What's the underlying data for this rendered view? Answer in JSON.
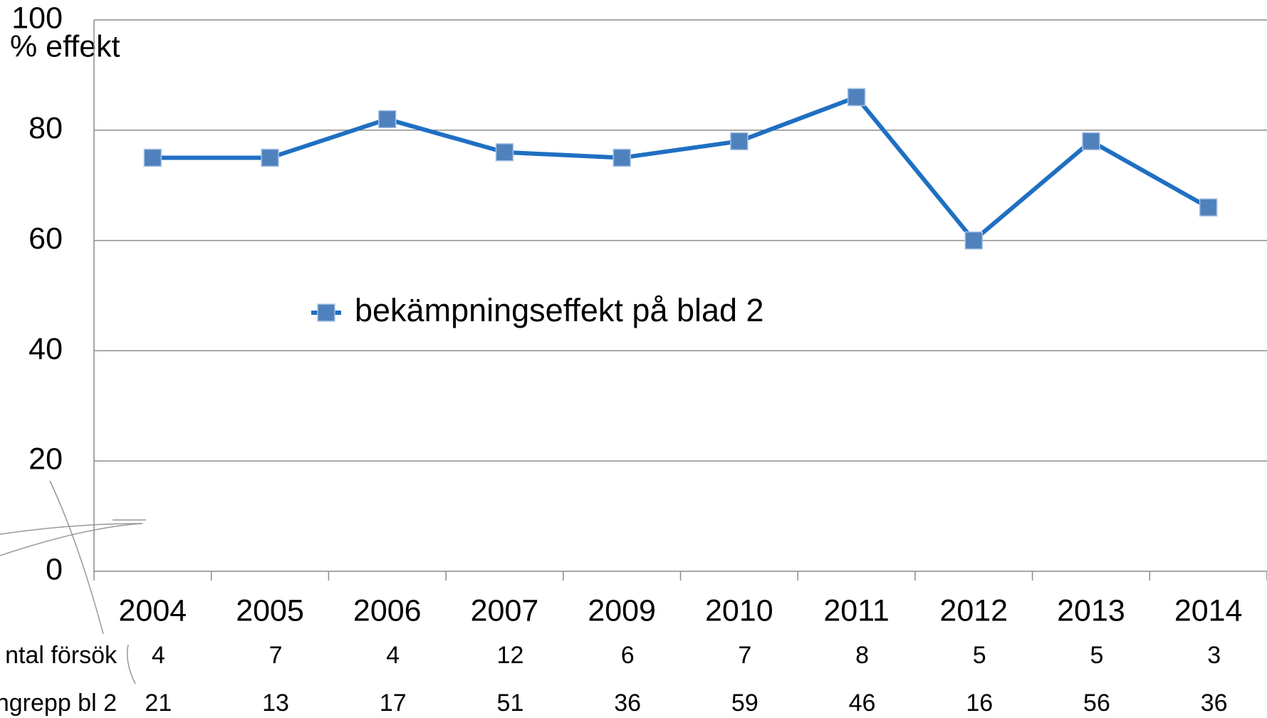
{
  "chart_data": {
    "type": "line",
    "y_label": "% effekt",
    "categories": [
      "2004",
      "2005",
      "2006",
      "2007",
      "2009",
      "2010",
      "2011",
      "2012",
      "2013",
      "2014"
    ],
    "series": [
      {
        "name": "bekämpningseffekt på blad 2",
        "color": "#1f6fc2",
        "marker_color": "#4f81bd",
        "values": [
          75,
          75,
          82,
          76,
          75,
          78,
          86,
          60,
          78,
          66
        ]
      }
    ],
    "ylim": [
      0,
      100
    ],
    "yticks": [
      0,
      20,
      40,
      60,
      80,
      100
    ],
    "grid": true,
    "table_rows": [
      {
        "label": "ntal försök",
        "values": [
          4,
          7,
          4,
          12,
          6,
          7,
          8,
          5,
          5,
          3
        ]
      },
      {
        "label": "ngrepp bl 2",
        "values": [
          21,
          13,
          17,
          51,
          36,
          59,
          46,
          16,
          56,
          36
        ]
      }
    ]
  }
}
